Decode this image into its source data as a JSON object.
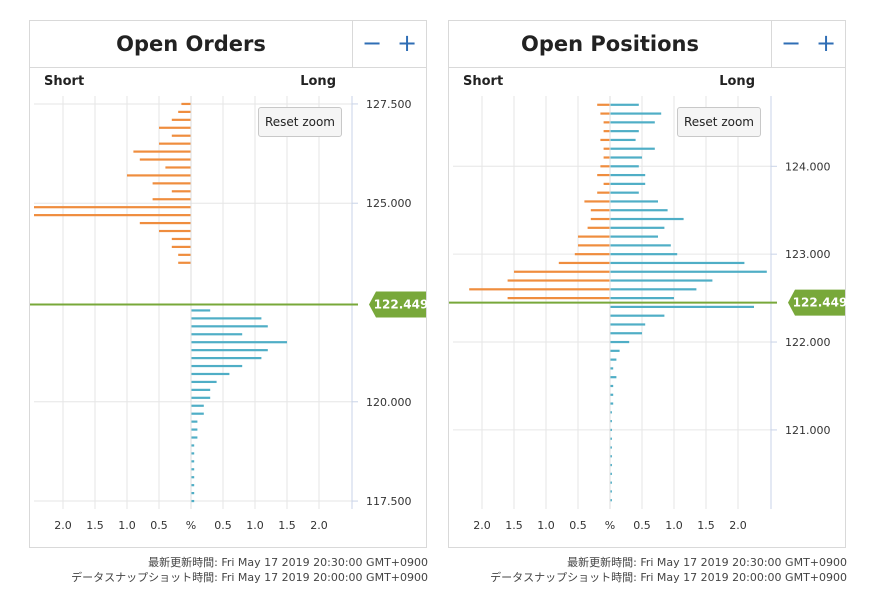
{
  "colors": {
    "short": "#ef8d3e",
    "long": "#4faec6",
    "price": "#78a83a",
    "grid": "#e6e6e6",
    "axis": "#c9d3e8"
  },
  "controls": {
    "zoom_out": "−",
    "zoom_in": "+"
  },
  "panels": [
    {
      "title": "Open Orders",
      "short_label": "Short",
      "long_label": "Long",
      "reset_label": "Reset zoom",
      "price_label": "122.449",
      "footer_update": "最新更新時間: Fri May 17 2019 20:30:00 GMT+0900",
      "footer_snapshot": "データスナップショット時間: Fri May 17 2019 20:00:00 GMT+0900"
    },
    {
      "title": "Open Positions",
      "short_label": "Short",
      "long_label": "Long",
      "reset_label": "Reset zoom",
      "price_label": "122.449",
      "footer_update": "最新更新時間: Fri May 17 2019 20:30:00 GMT+0900",
      "footer_snapshot": "データスナップショット時間: Fri May 17 2019 20:00:00 GMT+0900"
    }
  ],
  "chart_data": [
    {
      "type": "bar",
      "title": "Open Orders",
      "orientation": "horizontal-diverging",
      "x_label_left": "Short",
      "x_label_right": "Long",
      "x_ticks": [
        "2.0",
        "1.5",
        "1.0",
        "0.5",
        "%",
        "0.5",
        "1.0",
        "1.5",
        "2.0"
      ],
      "xlim": [
        -2.5,
        2.5
      ],
      "y_ticks": [
        "127.500",
        "125.000",
        "120.000",
        "117.500"
      ],
      "y_tick_values": [
        127.5,
        125.0,
        120.0,
        117.5
      ],
      "ylim": [
        117.3,
        127.7
      ],
      "current_price": 122.449,
      "series": [
        {
          "name": "Short",
          "prices": [
            127.5,
            127.3,
            127.1,
            126.9,
            126.7,
            126.5,
            126.3,
            126.1,
            125.9,
            125.7,
            125.5,
            125.3,
            125.1,
            124.9,
            124.7,
            124.5,
            124.3,
            124.1,
            123.9,
            123.7,
            123.5,
            123.3,
            123.1,
            122.9,
            122.7,
            122.5,
            122.3,
            122.1,
            121.9,
            121.7,
            121.5,
            121.3,
            121.1,
            120.9,
            120.7,
            120.5,
            120.3,
            120.1,
            119.9,
            119.7,
            119.5,
            119.3,
            119.1,
            118.9,
            118.7,
            118.5,
            118.3,
            118.1,
            117.9,
            117.7,
            117.5
          ],
          "values": [
            0.15,
            0.2,
            0.3,
            0.5,
            0.3,
            0.5,
            0.9,
            0.8,
            0.4,
            1.0,
            0.6,
            0.3,
            0.6,
            2.5,
            2.5,
            0.8,
            0.5,
            0.3,
            0.3,
            0.2,
            0.2,
            0.0,
            0.0,
            0.0,
            0.0,
            0.0,
            0.0,
            0.0,
            0.0,
            0.0,
            0.0,
            0.0,
            0.0,
            0.0,
            0.0,
            0.0,
            0.0,
            0.0,
            0.0,
            0.0,
            0.0,
            0.0,
            0.0,
            0.0,
            0.0,
            0.0,
            0.0,
            0.0,
            0.0,
            0.0,
            0.0
          ]
        },
        {
          "name": "Long",
          "prices": [
            127.5,
            127.3,
            127.1,
            126.9,
            126.7,
            126.5,
            126.3,
            126.1,
            125.9,
            125.7,
            125.5,
            125.3,
            125.1,
            124.9,
            124.7,
            124.5,
            124.3,
            124.1,
            123.9,
            123.7,
            123.5,
            123.3,
            123.1,
            122.9,
            122.7,
            122.5,
            122.3,
            122.1,
            121.9,
            121.7,
            121.5,
            121.3,
            121.1,
            120.9,
            120.7,
            120.5,
            120.3,
            120.1,
            119.9,
            119.7,
            119.5,
            119.3,
            119.1,
            118.9,
            118.7,
            118.5,
            118.3,
            118.1,
            117.9,
            117.7,
            117.5
          ],
          "values": [
            0.0,
            0.0,
            0.0,
            0.0,
            0.0,
            0.0,
            0.0,
            0.0,
            0.0,
            0.0,
            0.0,
            0.0,
            0.0,
            0.0,
            0.0,
            0.0,
            0.0,
            0.0,
            0.0,
            0.0,
            0.0,
            0.0,
            0.0,
            0.0,
            0.0,
            0.0,
            0.3,
            1.1,
            1.2,
            0.8,
            1.5,
            1.2,
            1.1,
            0.8,
            0.6,
            0.4,
            0.3,
            0.3,
            0.2,
            0.2,
            0.1,
            0.1,
            0.1,
            0.05,
            0.05,
            0.05,
            0.05,
            0.05,
            0.05,
            0.05,
            0.05
          ]
        }
      ]
    },
    {
      "type": "bar",
      "title": "Open Positions",
      "orientation": "horizontal-diverging",
      "x_label_left": "Short",
      "x_label_right": "Long",
      "x_ticks": [
        "2.0",
        "1.5",
        "1.0",
        "0.5",
        "%",
        "0.5",
        "1.0",
        "1.5",
        "2.0"
      ],
      "xlim": [
        -2.5,
        2.5
      ],
      "y_ticks": [
        "124.000",
        "123.000",
        "122.000",
        "121.000"
      ],
      "y_tick_values": [
        124.0,
        123.0,
        122.0,
        121.0
      ],
      "ylim": [
        120.1,
        124.8
      ],
      "current_price": 122.449,
      "series": [
        {
          "name": "Short",
          "prices": [
            124.7,
            124.6,
            124.5,
            124.4,
            124.3,
            124.2,
            124.1,
            124.0,
            123.9,
            123.8,
            123.7,
            123.6,
            123.5,
            123.4,
            123.3,
            123.2,
            123.1,
            123.0,
            122.9,
            122.8,
            122.7,
            122.6,
            122.5,
            122.4,
            122.3,
            122.2,
            122.1,
            122.0,
            121.9,
            121.8,
            121.7,
            121.6,
            121.5,
            121.4,
            121.3,
            121.2,
            121.1,
            121.0,
            120.9,
            120.8,
            120.7,
            120.6,
            120.5,
            120.4,
            120.3,
            120.2
          ],
          "values": [
            0.2,
            0.15,
            0.1,
            0.1,
            0.15,
            0.1,
            0.1,
            0.15,
            0.2,
            0.1,
            0.2,
            0.4,
            0.3,
            0.3,
            0.35,
            0.5,
            0.5,
            0.55,
            0.8,
            1.5,
            1.6,
            2.2,
            1.6,
            0.0,
            0.0,
            0.0,
            0.0,
            0.0,
            0.0,
            0.0,
            0.0,
            0.0,
            0.0,
            0.0,
            0.0,
            0.0,
            0.0,
            0.0,
            0.0,
            0.0,
            0.0,
            0.0,
            0.0,
            0.0,
            0.0,
            0.0
          ]
        },
        {
          "name": "Long",
          "prices": [
            124.7,
            124.6,
            124.5,
            124.4,
            124.3,
            124.2,
            124.1,
            124.0,
            123.9,
            123.8,
            123.7,
            123.6,
            123.5,
            123.4,
            123.3,
            123.2,
            123.1,
            123.0,
            122.9,
            122.8,
            122.7,
            122.6,
            122.5,
            122.4,
            122.3,
            122.2,
            122.1,
            122.0,
            121.9,
            121.8,
            121.7,
            121.6,
            121.5,
            121.4,
            121.3,
            121.2,
            121.1,
            121.0,
            120.9,
            120.8,
            120.7,
            120.6,
            120.5,
            120.4,
            120.3,
            120.2
          ],
          "values": [
            0.45,
            0.8,
            0.7,
            0.45,
            0.4,
            0.7,
            0.5,
            0.45,
            0.55,
            0.55,
            0.45,
            0.75,
            0.9,
            1.15,
            0.85,
            0.75,
            0.95,
            1.05,
            2.1,
            2.45,
            1.6,
            1.35,
            1.0,
            2.25,
            0.85,
            0.55,
            0.5,
            0.3,
            0.15,
            0.1,
            0.05,
            0.1,
            0.05,
            0.05,
            0.05,
            0.03,
            0.03,
            0.03,
            0.03,
            0.03,
            0.03,
            0.03,
            0.03,
            0.03,
            0.03,
            0.03
          ]
        }
      ]
    }
  ]
}
